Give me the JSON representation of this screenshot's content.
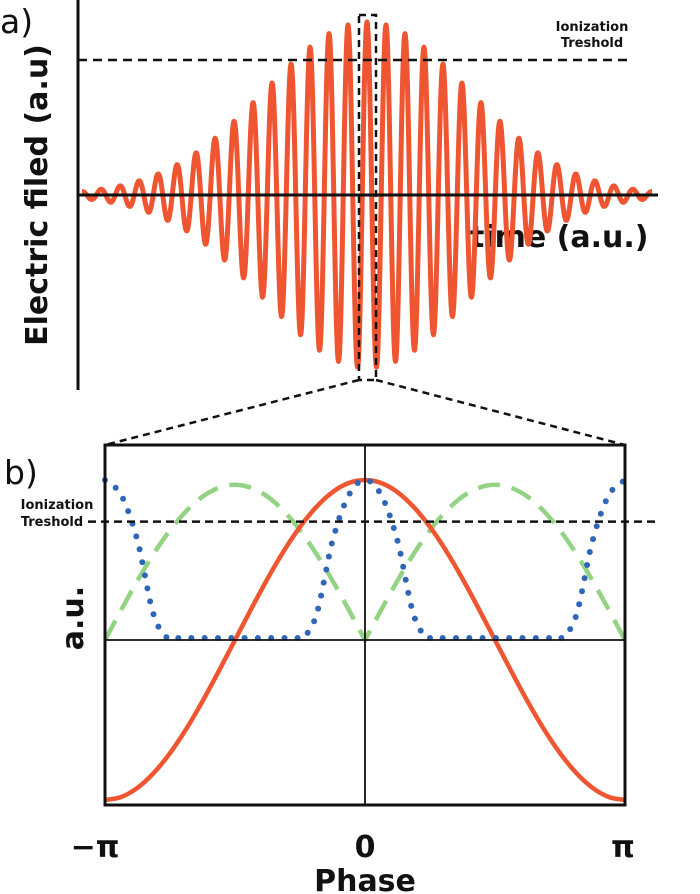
{
  "chart_data": [
    {
      "panel_label": "a)",
      "type": "line",
      "xlabel": "time (a.u.)",
      "ylabel": "Electric filed (a.u)",
      "annotation": "Ionization\nTreshold",
      "annotation_lines": [
        "Ionization",
        "Treshold"
      ],
      "threshold": 0.78,
      "series": [
        {
          "description_shape": "gaussian-enveloped carrier oscillation",
          "peak_amplitude": 1.0,
          "color": "#ee5530"
        }
      ],
      "highlight_box": "central carrier peak, dashed box zoomed into panel b"
    },
    {
      "panel_label": "b)",
      "type": "line",
      "xlabel": "Phase",
      "ylabel": "a.u.",
      "xticks": [
        "−π",
        "0",
        "π"
      ],
      "xlim_pi": [
        -1,
        1
      ],
      "annotation_lines": [
        "Ionization",
        "Treshold"
      ],
      "threshold": 0.74,
      "x_pi": [
        -1,
        -0.9375,
        -0.875,
        -0.8125,
        -0.75,
        -0.6875,
        -0.625,
        -0.5625,
        -0.5,
        -0.4375,
        -0.375,
        -0.3125,
        -0.25,
        -0.1875,
        -0.125,
        -0.0625,
        0,
        0.0625,
        0.125,
        0.1875,
        0.25,
        0.3125,
        0.375,
        0.4375,
        0.5,
        0.5625,
        0.625,
        0.6875,
        0.75,
        0.8125,
        0.875,
        0.9375,
        1
      ],
      "series": [
        {
          "style": "solid",
          "color": "#ee5530",
          "values": [
            -1,
            -0.981,
            -0.924,
            -0.831,
            -0.707,
            -0.556,
            -0.383,
            -0.195,
            0,
            0.195,
            0.383,
            0.556,
            0.707,
            0.831,
            0.924,
            0.981,
            1,
            0.981,
            0.924,
            0.831,
            0.707,
            0.556,
            0.383,
            0.195,
            0,
            -0.195,
            -0.383,
            -0.556,
            -0.707,
            -0.831,
            -0.924,
            -0.981,
            -1
          ]
        },
        {
          "style": "dashed",
          "color": "#95d384",
          "values": [
            0,
            0.189,
            0.371,
            0.539,
            0.686,
            0.806,
            0.896,
            0.951,
            0.97,
            0.951,
            0.896,
            0.806,
            0.686,
            0.539,
            0.371,
            0.189,
            0,
            0.189,
            0.371,
            0.539,
            0.686,
            0.806,
            0.896,
            0.951,
            0.97,
            0.951,
            0.896,
            0.806,
            0.686,
            0.539,
            0.371,
            0.189,
            0
          ]
        },
        {
          "style": "dotted",
          "color": "#2f66b8",
          "values": [
            1,
            0.905,
            0.62,
            0.155,
            0,
            0,
            0,
            0,
            0,
            0,
            0,
            0,
            0,
            0.155,
            0.62,
            0.905,
            1,
            0.905,
            0.62,
            0.155,
            0,
            0,
            0,
            0,
            0,
            0,
            0,
            0,
            0,
            0.155,
            0.62,
            0.905,
            1
          ]
        }
      ]
    }
  ]
}
